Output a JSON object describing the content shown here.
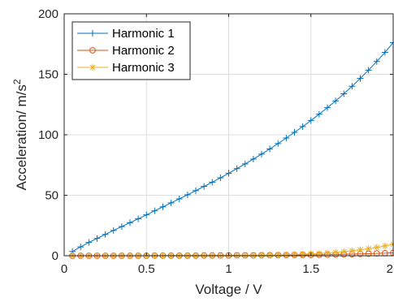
{
  "chart_data": {
    "type": "line",
    "xlabel": "Voltage / V",
    "ylabel": "Acceleration/ m/s",
    "ylabel_superscript": "2",
    "xlim": [
      0,
      2
    ],
    "ylim": [
      0,
      200
    ],
    "xticks": [
      0,
      0.5,
      1,
      1.5,
      2
    ],
    "xtick_labels": [
      "0",
      "0.5",
      "1",
      "1.5",
      "2"
    ],
    "yticks": [
      0,
      50,
      100,
      150,
      200
    ],
    "ytick_labels": [
      "0",
      "50",
      "100",
      "150",
      "200"
    ],
    "grid": true,
    "legend_position": "top-left",
    "x": [
      0.05,
      0.1,
      0.15,
      0.2,
      0.25,
      0.3,
      0.35,
      0.4,
      0.45,
      0.5,
      0.55,
      0.6,
      0.65,
      0.7,
      0.75,
      0.8,
      0.85,
      0.9,
      0.95,
      1.0,
      1.05,
      1.1,
      1.15,
      1.2,
      1.25,
      1.3,
      1.35,
      1.4,
      1.45,
      1.5,
      1.55,
      1.6,
      1.65,
      1.7,
      1.75,
      1.8,
      1.85,
      1.9,
      1.95,
      2.0
    ],
    "series": [
      {
        "name": "Harmonic 1",
        "color": "#0072BD",
        "marker": "plus",
        "values": [
          3.5,
          7.3,
          11.0,
          14.3,
          17.6,
          20.9,
          24.1,
          27.3,
          30.5,
          33.8,
          37.1,
          40.4,
          43.7,
          47.0,
          50.4,
          53.8,
          57.3,
          60.8,
          64.4,
          68.2,
          72.0,
          75.9,
          79.9,
          84.0,
          88.3,
          92.7,
          97.3,
          102.0,
          106.8,
          111.8,
          117.0,
          122.4,
          128.0,
          133.9,
          140.1,
          146.6,
          153.4,
          160.6,
          168.1,
          176.2
        ]
      },
      {
        "name": "Harmonic 2",
        "color": "#D95319",
        "marker": "circle",
        "values": [
          0.0,
          0.0,
          0.0,
          0.0,
          0.0,
          0.0,
          0.0,
          0.0,
          0.0,
          0.0,
          0.1,
          0.1,
          0.1,
          0.1,
          0.1,
          0.1,
          0.2,
          0.2,
          0.2,
          0.2,
          0.3,
          0.3,
          0.3,
          0.4,
          0.4,
          0.5,
          0.5,
          0.6,
          0.7,
          0.7,
          0.8,
          0.9,
          1.0,
          1.2,
          1.3,
          1.5,
          1.7,
          1.9,
          2.1,
          2.4
        ]
      },
      {
        "name": "Harmonic 3",
        "color": "#EDB120",
        "marker": "asterisk",
        "values": [
          0.0,
          0.0,
          0.0,
          0.0,
          0.0,
          0.0,
          0.0,
          0.0,
          0.0,
          0.0,
          0.0,
          0.0,
          0.0,
          0.0,
          0.1,
          0.1,
          0.1,
          0.1,
          0.2,
          0.2,
          0.3,
          0.3,
          0.4,
          0.5,
          0.6,
          0.7,
          0.9,
          1.1,
          1.3,
          1.6,
          1.9,
          2.3,
          2.8,
          3.4,
          4.1,
          4.9,
          5.8,
          6.9,
          8.1,
          9.5
        ]
      }
    ]
  }
}
